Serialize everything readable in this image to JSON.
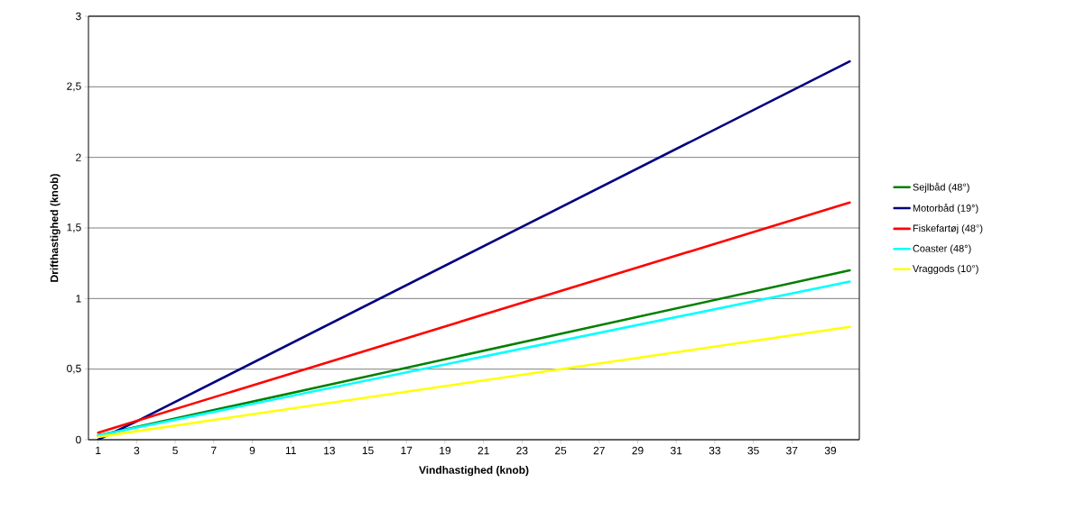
{
  "chart_data": {
    "type": "line",
    "xlabel": "Vindhastighed (knob)",
    "ylabel": "Drifthastighed (knob)",
    "xlim": [
      0.5,
      40.5
    ],
    "xticks": [
      1,
      3,
      5,
      7,
      9,
      11,
      13,
      15,
      17,
      19,
      21,
      23,
      25,
      27,
      29,
      31,
      33,
      35,
      37,
      39
    ],
    "ylim": [
      0,
      3
    ],
    "yticks": [
      0,
      {
        "value": 0.5,
        "label": "0,5"
      },
      1,
      {
        "value": 1.5,
        "label": "1,5"
      },
      2,
      {
        "value": 2.5,
        "label": "2,5"
      },
      3
    ],
    "grid": "y",
    "legend": "right",
    "marker": "none",
    "line_style": "solid",
    "series": [
      {
        "name": "Sejlbåd (48°)",
        "color": "#008000",
        "x": [
          1,
          40
        ],
        "values": [
          0.03,
          1.2
        ]
      },
      {
        "name": "Motorbåd (19°)",
        "color": "#000080",
        "x": [
          1,
          3,
          40
        ],
        "values": [
          0.0,
          0.13,
          2.68
        ]
      },
      {
        "name": "Fiskefartøj (48°)",
        "color": "#ff0000",
        "x": [
          1,
          40
        ],
        "values": [
          0.05,
          1.68
        ]
      },
      {
        "name": "Coaster (48°)",
        "color": "#00ffff",
        "x": [
          1,
          40
        ],
        "values": [
          0.03,
          1.12
        ]
      },
      {
        "name": "Vraggods (10°)",
        "color": "#ffff00",
        "x": [
          1,
          40
        ],
        "values": [
          0.02,
          0.8
        ]
      }
    ]
  }
}
